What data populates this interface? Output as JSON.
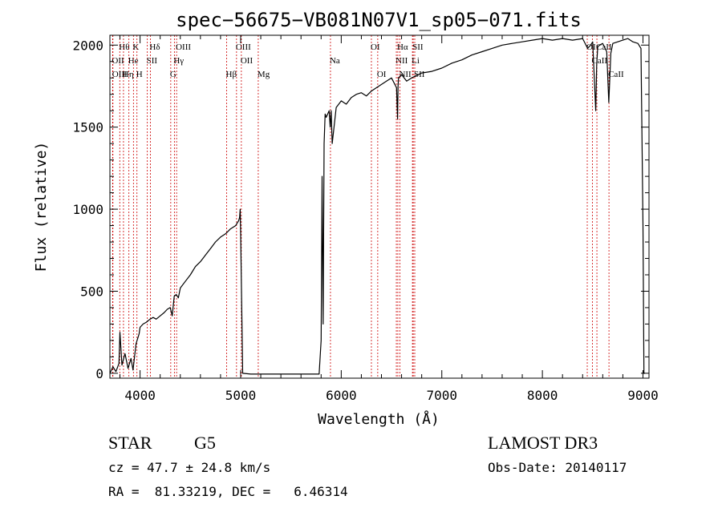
{
  "chart_data": {
    "type": "line",
    "title": "spec−56675−VB081N07V1_sp05−071.fits",
    "xlabel": "Wavelength (Å)",
    "ylabel": "Flux (relative)",
    "xlim": [
      3700,
      9060
    ],
    "ylim": [
      -30,
      2060
    ],
    "x_ticks": [
      4000,
      5000,
      6000,
      7000,
      8000,
      9000
    ],
    "y_ticks": [
      0,
      500,
      1000,
      1500,
      2000
    ],
    "grid": false,
    "line_color": "#000000",
    "marker_color": "#cc0000",
    "series": [
      {
        "name": "flux",
        "x": [
          3700,
          3730,
          3760,
          3790,
          3800,
          3820,
          3850,
          3880,
          3910,
          3930,
          3960,
          3990,
          4000,
          4030,
          4060,
          4100,
          4130,
          4160,
          4200,
          4240,
          4270,
          4300,
          4320,
          4340,
          4360,
          4380,
          4400,
          4450,
          4500,
          4550,
          4600,
          4650,
          4700,
          4750,
          4800,
          4850,
          4900,
          4950,
          4980,
          4990,
          4995,
          5000,
          5020,
          5100,
          5300,
          5500,
          5700,
          5780,
          5800,
          5810,
          5820,
          5830,
          5840,
          5850,
          5880,
          5890,
          5900,
          5910,
          5950,
          6000,
          6050,
          6100,
          6150,
          6200,
          6250,
          6300,
          6350,
          6400,
          6450,
          6500,
          6550,
          6560,
          6565,
          6570,
          6600,
          6650,
          6700,
          6800,
          6900,
          7000,
          7100,
          7200,
          7300,
          7400,
          7500,
          7600,
          7700,
          7800,
          7900,
          8000,
          8100,
          8200,
          8300,
          8400,
          8450,
          8480,
          8500,
          8530,
          8540,
          8550,
          8570,
          8600,
          8640,
          8660,
          8680,
          8700,
          8750,
          8800,
          8850,
          8900,
          8950,
          8980,
          9000,
          9010,
          9020
        ],
        "y": [
          0,
          40,
          10,
          60,
          250,
          50,
          120,
          30,
          90,
          20,
          180,
          240,
          280,
          300,
          310,
          330,
          340,
          330,
          350,
          370,
          390,
          400,
          350,
          470,
          480,
          460,
          520,
          560,
          600,
          650,
          680,
          720,
          760,
          800,
          830,
          850,
          880,
          900,
          930,
          950,
          1000,
          850,
          0,
          -5,
          -5,
          -5,
          -5,
          -5,
          200,
          1200,
          300,
          1400,
          1580,
          1560,
          1600,
          1500,
          1600,
          1400,
          1620,
          1660,
          1640,
          1680,
          1700,
          1710,
          1690,
          1720,
          1740,
          1760,
          1780,
          1800,
          1740,
          1550,
          1750,
          1800,
          1820,
          1780,
          1800,
          1830,
          1840,
          1860,
          1890,
          1910,
          1940,
          1960,
          1980,
          2000,
          2010,
          2020,
          2030,
          2040,
          2030,
          2040,
          2030,
          2040,
          1980,
          2000,
          2020,
          1600,
          1880,
          1990,
          2000,
          2010,
          1960,
          1650,
          1950,
          2010,
          2020,
          2030,
          2040,
          2020,
          2010,
          1980,
          900,
          0,
          0
        ]
      }
    ],
    "line_markers": [
      {
        "label": "Hθ",
        "wl": 3798,
        "row": 1
      },
      {
        "label": "OII",
        "wl": 3727,
        "row": 2
      },
      {
        "label": "OIII",
        "wl": 3730,
        "row": 3
      },
      {
        "label": "He",
        "wl": 3889,
        "row": 2
      },
      {
        "label": "Hη",
        "wl": 3835,
        "row": 3
      },
      {
        "label": "K",
        "wl": 3934,
        "row": 1
      },
      {
        "label": "SII",
        "wl": 4072,
        "row": 2
      },
      {
        "label": "H",
        "wl": 3969,
        "row": 3
      },
      {
        "label": "Hδ",
        "wl": 4102,
        "row": 1
      },
      {
        "label": "OIII",
        "wl": 4363,
        "row": 1
      },
      {
        "label": "Hγ",
        "wl": 4341,
        "row": 2
      },
      {
        "label": "G",
        "wl": 4305,
        "row": 3
      },
      {
        "label": "OIII",
        "wl": 4959,
        "row": 1
      },
      {
        "label": "OII",
        "wl": 5007,
        "row": 2
      },
      {
        "label": "Hβ",
        "wl": 4861,
        "row": 3
      },
      {
        "label": "Mg",
        "wl": 5175,
        "row": 3
      },
      {
        "label": "Na",
        "wl": 5893,
        "row": 2
      },
      {
        "label": "OI",
        "wl": 6300,
        "row": 1
      },
      {
        "label": "OI",
        "wl": 6363,
        "row": 3
      },
      {
        "label": "Hα",
        "wl": 6563,
        "row": 1
      },
      {
        "label": "SII",
        "wl": 6716,
        "row": 1
      },
      {
        "label": "NII",
        "wl": 6548,
        "row": 2
      },
      {
        "label": "Li",
        "wl": 6708,
        "row": 2
      },
      {
        "label": "NII",
        "wl": 6583,
        "row": 3
      },
      {
        "label": "SII",
        "wl": 6731,
        "row": 3
      },
      {
        "label": "CaII",
        "wl": 8542,
        "row": 1
      },
      {
        "label": "OI",
        "wl": 8446,
        "row": 1
      },
      {
        "label": "CaII",
        "wl": 8498,
        "row": 2
      },
      {
        "label": "CaII",
        "wl": 8662,
        "row": 3
      }
    ]
  },
  "info": {
    "object_class": "STAR",
    "subclass": "G5",
    "redshift": "cz = 47.7 ± 24.8 km/s",
    "coords": "RA =  81.33219, DEC =   6.46314",
    "survey": "LAMOST DR3",
    "obs_date": "Obs-Date: 20140117"
  }
}
